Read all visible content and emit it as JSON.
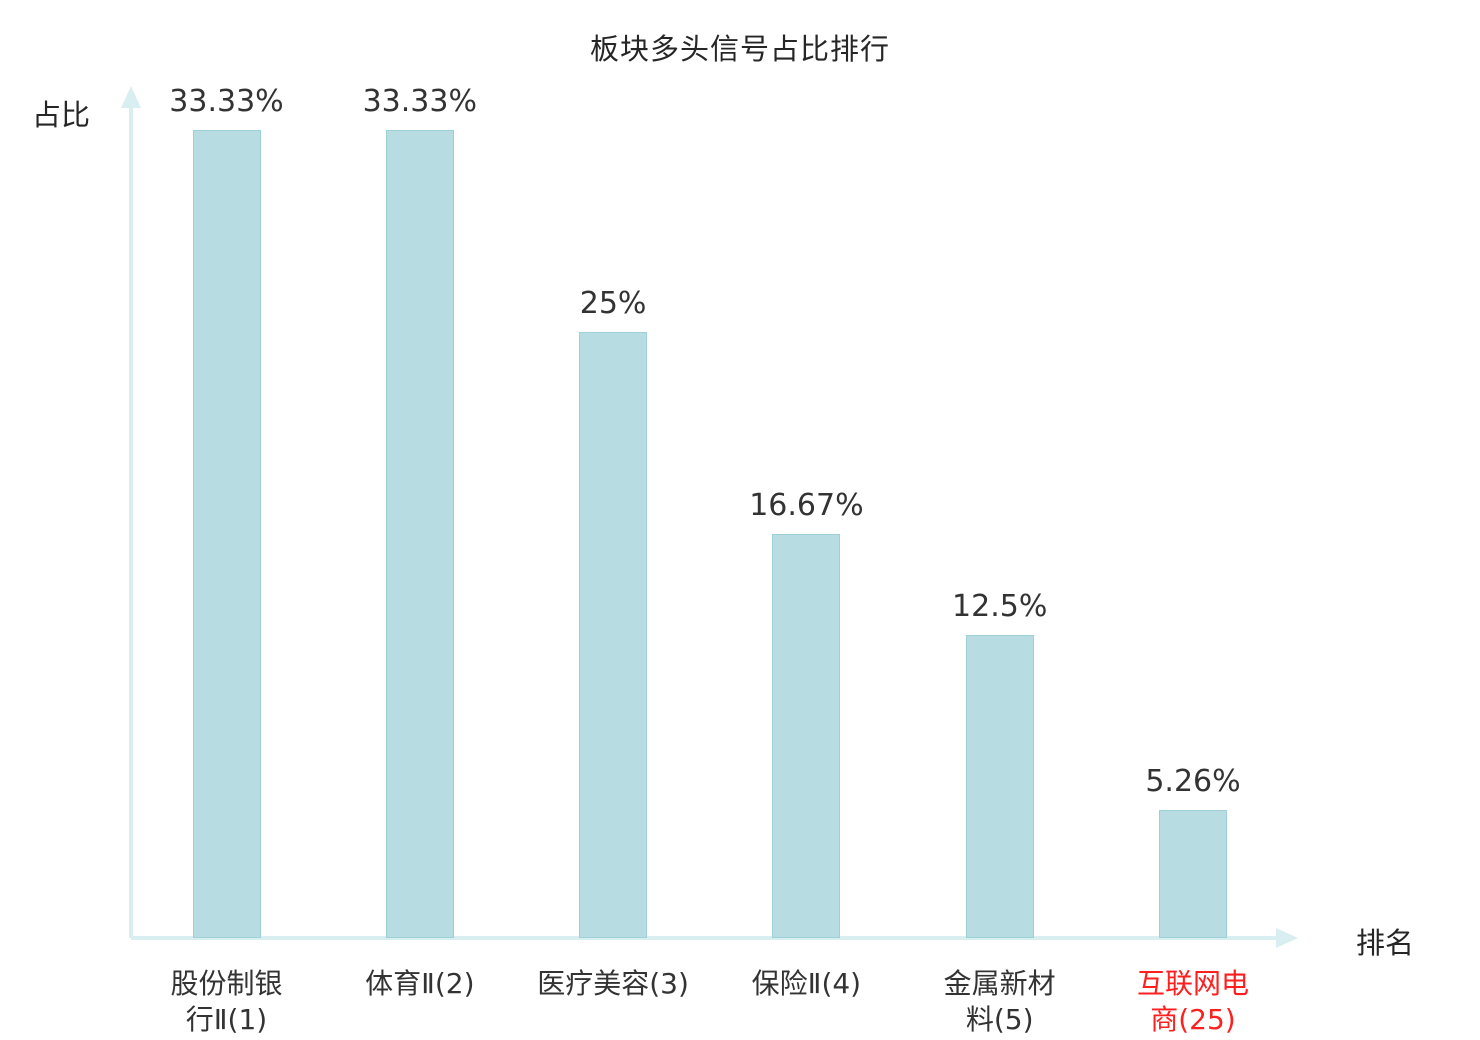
{
  "page": {
    "background": "#ffffff"
  },
  "chart_data": {
    "type": "bar",
    "title": "板块多头信号占比排行",
    "ylabel": "占比",
    "xlabel": "排名",
    "categories": [
      "股份制银行Ⅱ(1)",
      "体育Ⅱ(2)",
      "医疗美容(3)",
      "保险Ⅱ(4)",
      "金属新材料(5)",
      "互联网电商(25)"
    ],
    "tick_labels": [
      "股份制银\n行Ⅱ(1)",
      "体育Ⅱ(2)",
      "医疗美容(3)",
      "保险Ⅱ(4)",
      "金属新材\n料(5)",
      "互联网电\n商(25)"
    ],
    "values": [
      33.33,
      33.33,
      25,
      16.67,
      12.5,
      5.26
    ],
    "value_labels": [
      "33.33%",
      "33.33%",
      "25%",
      "16.67%",
      "12.5%",
      "5.26%"
    ],
    "ylim": [
      0,
      35
    ],
    "grid": false,
    "legend": "none",
    "highlight_index": 5,
    "colors": {
      "bar_fill": "#b7dde2",
      "bar_border": "#9ed0d8",
      "axis": "#d9eef0",
      "text": "#333333",
      "highlight": "#ff1f1f"
    }
  }
}
